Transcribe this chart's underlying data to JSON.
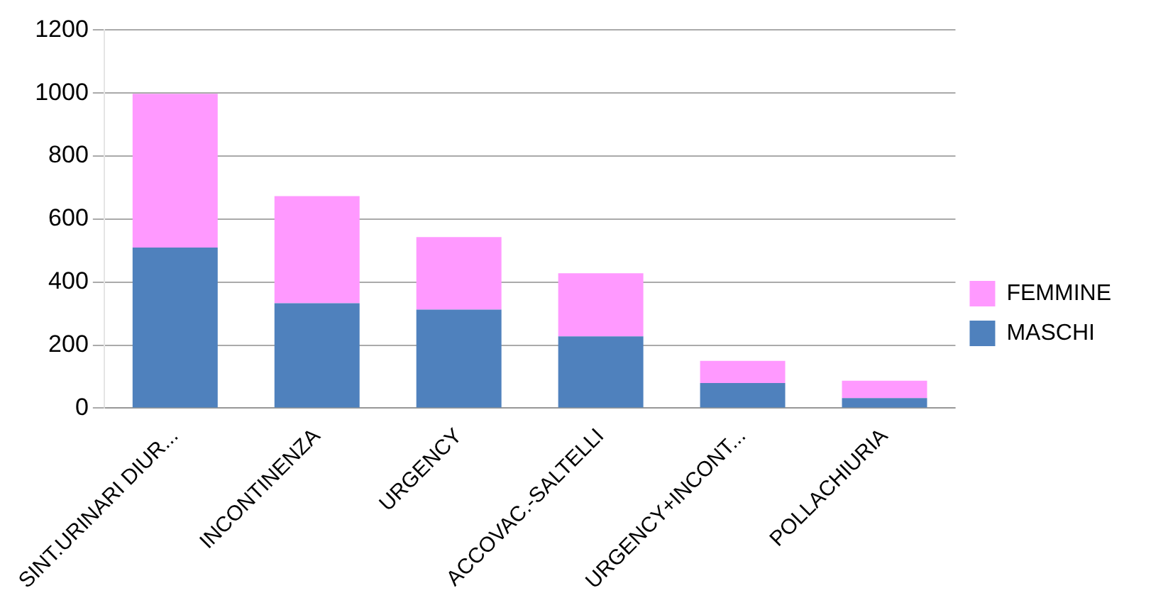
{
  "chart_data": {
    "type": "bar",
    "stacked": true,
    "categories": [
      "SINT.URINARI DIUR...",
      "INCONTINENZA",
      "URGENCY",
      "ACCOVAC.-SALTELLI",
      "URGENCY+INCONT...",
      "POLLACHIURIA"
    ],
    "series": [
      {
        "name": "MASCHI",
        "color": "#4f81bd",
        "values": [
          510,
          333,
          313,
          228,
          80,
          32
        ]
      },
      {
        "name": "FEMMINE",
        "color": "#ff99ff",
        "values": [
          488,
          340,
          230,
          200,
          70,
          55
        ]
      }
    ],
    "ylim": [
      0,
      1200
    ],
    "yticks": [
      0,
      200,
      400,
      600,
      800,
      1000,
      1200
    ],
    "grid": "y",
    "legend": "right"
  }
}
